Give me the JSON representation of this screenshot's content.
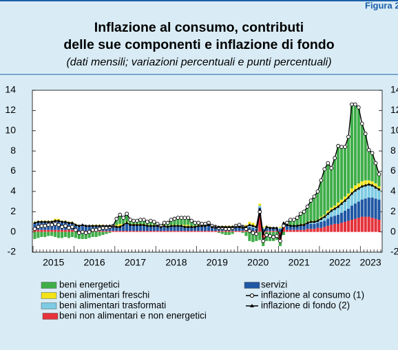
{
  "figure_label": "Figura 2",
  "chart_data": {
    "type": "bar",
    "title": "Inflazione al consumo, contributi",
    "title_line2": "delle sue componenti e inflazione di fondo",
    "subtitle": "(dati mensili; variazioni percentuali e punti percentuali)",
    "stacked": true,
    "categories": [
      null,
      null,
      null,
      null,
      null,
      "2015",
      null,
      null,
      null,
      null,
      null,
      null,
      null,
      null,
      null,
      null,
      null,
      "2016",
      null,
      null,
      null,
      null,
      null,
      null,
      null,
      null,
      null,
      null,
      null,
      "2017",
      null,
      null,
      null,
      null,
      null,
      null,
      null,
      null,
      null,
      null,
      null,
      "2018",
      null,
      null,
      null,
      null,
      null,
      null,
      null,
      null,
      null,
      null,
      null,
      "2019",
      null,
      null,
      null,
      null,
      null,
      null,
      null,
      null,
      null,
      null,
      null,
      "2020",
      null,
      null,
      null,
      null,
      null,
      null,
      null,
      null,
      null,
      null,
      null,
      "2021",
      null,
      null,
      null,
      null,
      null,
      null,
      null,
      null,
      null,
      null,
      null,
      "2022",
      null,
      null,
      null,
      null,
      null,
      null,
      null,
      null,
      "2023",
      null,
      null,
      null
    ],
    "series": [
      {
        "name": "beni energetici",
        "color": "#3fae49",
        "values": [
          -0.7,
          -0.6,
          -0.5,
          -0.5,
          -0.4,
          -0.4,
          -0.5,
          -0.6,
          -0.6,
          -0.5,
          -0.6,
          -0.5,
          -0.6,
          -0.7,
          -0.7,
          -0.7,
          -0.6,
          -0.5,
          -0.5,
          -0.4,
          -0.3,
          -0.2,
          -0.1,
          0.0,
          0.6,
          0.9,
          0.6,
          0.8,
          0.4,
          0.3,
          0.3,
          0.4,
          0.4,
          0.3,
          0.4,
          0.3,
          0.2,
          0.1,
          0.2,
          0.3,
          0.5,
          0.6,
          0.7,
          0.7,
          0.7,
          0.7,
          0.5,
          0.3,
          0.2,
          0.1,
          0.1,
          0.2,
          0.1,
          0.0,
          -0.1,
          -0.2,
          -0.3,
          -0.3,
          -0.2,
          0.0,
          0.1,
          -0.1,
          -0.4,
          -0.9,
          -1.0,
          -0.9,
          -0.8,
          -0.8,
          -0.9,
          -0.9,
          -0.9,
          -0.8,
          -0.5,
          -0.3,
          0.2,
          0.6,
          0.6,
          0.8,
          1.0,
          1.2,
          1.5,
          2.0,
          2.4,
          2.8,
          3.6,
          4.5,
          4.7,
          3.9,
          4.7,
          5.6,
          5.2,
          4.9,
          5.6,
          8.3,
          8.0,
          7.5,
          5.7,
          4.6,
          3.0,
          2.8,
          2.0,
          1.2
        ]
      },
      {
        "name": "beni alimentari freschi",
        "color": "#f2e318",
        "values": [
          0.1,
          0.1,
          0.1,
          0.1,
          0.1,
          0.1,
          0.2,
          0.2,
          0.1,
          0.1,
          0.1,
          0.1,
          0.1,
          0,
          0,
          0,
          0,
          0.1,
          0.1,
          0.1,
          0.1,
          0,
          0,
          0,
          0.2,
          0.3,
          0.1,
          0.1,
          0.1,
          0.1,
          0.1,
          0.1,
          0.1,
          0.1,
          0.1,
          0.1,
          0,
          0,
          0.1,
          0.1,
          0.1,
          0.1,
          0.1,
          0.1,
          0.2,
          0.2,
          0.1,
          0.1,
          0.1,
          0.1,
          0.1,
          0,
          0,
          0,
          0,
          0.1,
          0.1,
          0.1,
          0.1,
          0.1,
          0.1,
          0.1,
          0.2,
          0.3,
          0.3,
          0.2,
          0.2,
          0.1,
          0.1,
          0.1,
          0,
          0,
          0.1,
          0,
          0,
          0,
          0,
          0,
          0.1,
          0.1,
          0.1,
          0.1,
          0.1,
          0.1,
          0.2,
          0.2,
          0.3,
          0.3,
          0.3,
          0.4,
          0.4,
          0.4,
          0.4,
          0.5,
          0.5,
          0.5,
          0.5,
          0.5,
          0.4,
          0.4,
          0.4,
          0.3
        ]
      },
      {
        "name": "beni alimentari trasformati",
        "color": "#7ccbe2",
        "values": [
          0.1,
          0.1,
          0.1,
          0.1,
          0.1,
          0.1,
          0.1,
          0.1,
          0.1,
          0.1,
          0.1,
          0.1,
          0.1,
          0.1,
          0.1,
          0.1,
          0.1,
          0.1,
          0.1,
          0.1,
          0.1,
          0.1,
          0.1,
          0.1,
          0.1,
          0.1,
          0.1,
          0.1,
          0.1,
          0.1,
          0.1,
          0.1,
          0.1,
          0.1,
          0.1,
          0.1,
          0.1,
          0.1,
          0.1,
          0.1,
          0.1,
          0.1,
          0.1,
          0.1,
          0.1,
          0.1,
          0.1,
          0.1,
          0.1,
          0.1,
          0.1,
          0.1,
          0.1,
          0.1,
          0.1,
          0.1,
          0.1,
          0.1,
          0.1,
          0.1,
          0.1,
          0.1,
          0.1,
          0.2,
          0.2,
          0.2,
          0.2,
          0.1,
          0.1,
          0.1,
          0.1,
          0.1,
          0.1,
          0.1,
          0.1,
          0.1,
          0.1,
          0.1,
          0.1,
          0.1,
          0.1,
          0.2,
          0.2,
          0.2,
          0.3,
          0.4,
          0.5,
          0.6,
          0.7,
          0.8,
          0.9,
          1.0,
          1.1,
          1.2,
          1.3,
          1.3,
          1.3,
          1.3,
          1.3,
          1.2,
          1.1,
          1.0
        ]
      },
      {
        "name": "beni non alimentari e non energetici",
        "color": "#e5323b",
        "values": [
          0.2,
          0.2,
          0.2,
          0.2,
          0.2,
          0.2,
          0.2,
          0.2,
          0.2,
          0.2,
          0.2,
          0.2,
          0.1,
          0.1,
          0.1,
          0.1,
          0.1,
          0.1,
          0.1,
          0.1,
          0.1,
          0.1,
          0.1,
          0.1,
          0.1,
          0.1,
          0.1,
          0.1,
          0.1,
          0.1,
          0.1,
          0.1,
          0.1,
          0.1,
          0.1,
          0.1,
          0.1,
          0.1,
          0.1,
          0.1,
          0.1,
          0.1,
          0.1,
          0.1,
          0.1,
          0.1,
          0.1,
          0.1,
          0.1,
          0.1,
          0.1,
          0.1,
          0.1,
          0.1,
          0.1,
          0.1,
          0.1,
          0.1,
          0.1,
          0.1,
          0.1,
          0.1,
          0.1,
          0.1,
          0.1,
          0.1,
          1.7,
          -0.6,
          0.1,
          0.1,
          0.1,
          0.1,
          -0.9,
          0.5,
          0.2,
          0.2,
          0.2,
          0.2,
          0.2,
          0.2,
          0.3,
          0.3,
          0.3,
          0.4,
          0.4,
          0.5,
          0.6,
          0.7,
          0.8,
          0.8,
          0.9,
          1.0,
          1.1,
          1.2,
          1.3,
          1.4,
          1.5,
          1.5,
          1.5,
          1.4,
          1.3,
          1.2
        ]
      },
      {
        "name": "servizi",
        "color": "#1f57a4",
        "values": [
          0.6,
          0.7,
          0.7,
          0.7,
          0.7,
          0.7,
          0.8,
          0.8,
          0.7,
          0.7,
          0.6,
          0.6,
          0.5,
          0.4,
          0.5,
          0.4,
          0.4,
          0.4,
          0.4,
          0.4,
          0.4,
          0.4,
          0.4,
          0.4,
          0.3,
          0.3,
          0.5,
          0.7,
          0.5,
          0.5,
          0.5,
          0.5,
          0.5,
          0.4,
          0.4,
          0.4,
          0.4,
          0.3,
          0.4,
          0.3,
          0.4,
          0.4,
          0.4,
          0.4,
          0.3,
          0.3,
          0.3,
          0.3,
          0.4,
          0.4,
          0.4,
          0.5,
          0.3,
          0.3,
          0.3,
          0.3,
          0.3,
          0.3,
          0.3,
          0.3,
          0.3,
          0.3,
          0.3,
          0.4,
          0.3,
          0.2,
          0.7,
          0.3,
          0.3,
          0.2,
          0.2,
          0.2,
          0.3,
          0.3,
          0.4,
          0.3,
          0.3,
          0.3,
          0.4,
          0.4,
          0.5,
          0.5,
          0.5,
          0.5,
          0.6,
          0.6,
          0.7,
          0.8,
          0.8,
          0.9,
          1.0,
          1.1,
          1.2,
          1.4,
          1.5,
          1.6,
          1.7,
          1.8,
          1.9,
          2.0,
          2.0,
          2.0
        ]
      },
      {
        "name": "inflazione al consumo (1)",
        "type": "line",
        "marker": "circle",
        "color": "#000000",
        "values": [
          0.3,
          0.5,
          0.6,
          0.6,
          0.7,
          0.7,
          0.8,
          0.7,
          0.5,
          0.6,
          0.4,
          0.5,
          0.2,
          -0.1,
          0.0,
          -0.1,
          0.0,
          0.2,
          0.2,
          0.3,
          0.4,
          0.4,
          0.5,
          0.6,
          1.3,
          1.7,
          1.4,
          1.8,
          1.2,
          1.1,
          1.1,
          1.2,
          1.2,
          1.0,
          1.1,
          1.0,
          0.8,
          0.6,
          0.9,
          0.9,
          1.2,
          1.3,
          1.4,
          1.4,
          1.4,
          1.4,
          1.1,
          0.9,
          0.9,
          0.8,
          0.8,
          0.9,
          0.6,
          0.5,
          0.4,
          0.4,
          0.3,
          0.3,
          0.4,
          0.6,
          0.7,
          0.5,
          0.3,
          0.1,
          -0.1,
          -0.2,
          2.0,
          -0.9,
          -0.3,
          -0.4,
          -0.5,
          -0.4,
          -0.9,
          0.6,
          0.9,
          1.2,
          1.2,
          1.4,
          1.8,
          2.0,
          2.5,
          3.1,
          3.5,
          4.0,
          5.1,
          6.2,
          6.8,
          6.3,
          7.3,
          8.5,
          8.4,
          8.4,
          9.4,
          12.6,
          12.6,
          12.3,
          10.7,
          9.7,
          8.1,
          7.8,
          6.8,
          5.7
        ]
      },
      {
        "name": "inflazione di fondo (2)",
        "type": "line",
        "marker": "triangle",
        "color": "#000000",
        "values": [
          0.9,
          1.0,
          1.0,
          1.0,
          1.0,
          1.0,
          1.1,
          1.1,
          1.0,
          1.0,
          0.9,
          0.9,
          0.7,
          0.6,
          0.7,
          0.6,
          0.6,
          0.6,
          0.6,
          0.6,
          0.6,
          0.6,
          0.6,
          0.6,
          0.5,
          0.5,
          0.7,
          0.9,
          0.7,
          0.7,
          0.7,
          0.7,
          0.7,
          0.6,
          0.6,
          0.6,
          0.6,
          0.5,
          0.6,
          0.5,
          0.6,
          0.6,
          0.6,
          0.6,
          0.5,
          0.5,
          0.5,
          0.5,
          0.6,
          0.6,
          0.6,
          0.7,
          0.5,
          0.5,
          0.5,
          0.5,
          0.5,
          0.5,
          0.5,
          0.5,
          0.5,
          0.5,
          0.5,
          0.7,
          0.6,
          0.5,
          2.2,
          -0.2,
          0.5,
          0.4,
          0.4,
          0.4,
          -0.5,
          0.9,
          0.7,
          0.6,
          0.6,
          0.6,
          0.7,
          0.7,
          0.9,
          1.0,
          1.0,
          1.1,
          1.3,
          1.5,
          1.8,
          2.1,
          2.3,
          2.5,
          2.8,
          3.1,
          3.4,
          3.8,
          4.1,
          4.3,
          4.5,
          4.6,
          4.7,
          4.6,
          4.4,
          4.2
        ]
      }
    ],
    "ylim": [
      -2,
      14
    ],
    "yticks": [
      -2,
      0,
      2,
      4,
      6,
      8,
      10,
      12,
      14
    ],
    "y2lim": [
      -2,
      14
    ],
    "y2ticks": [
      -2,
      0,
      2,
      4,
      6,
      8,
      10,
      12,
      14
    ],
    "grid": false,
    "legend": "bottom"
  }
}
